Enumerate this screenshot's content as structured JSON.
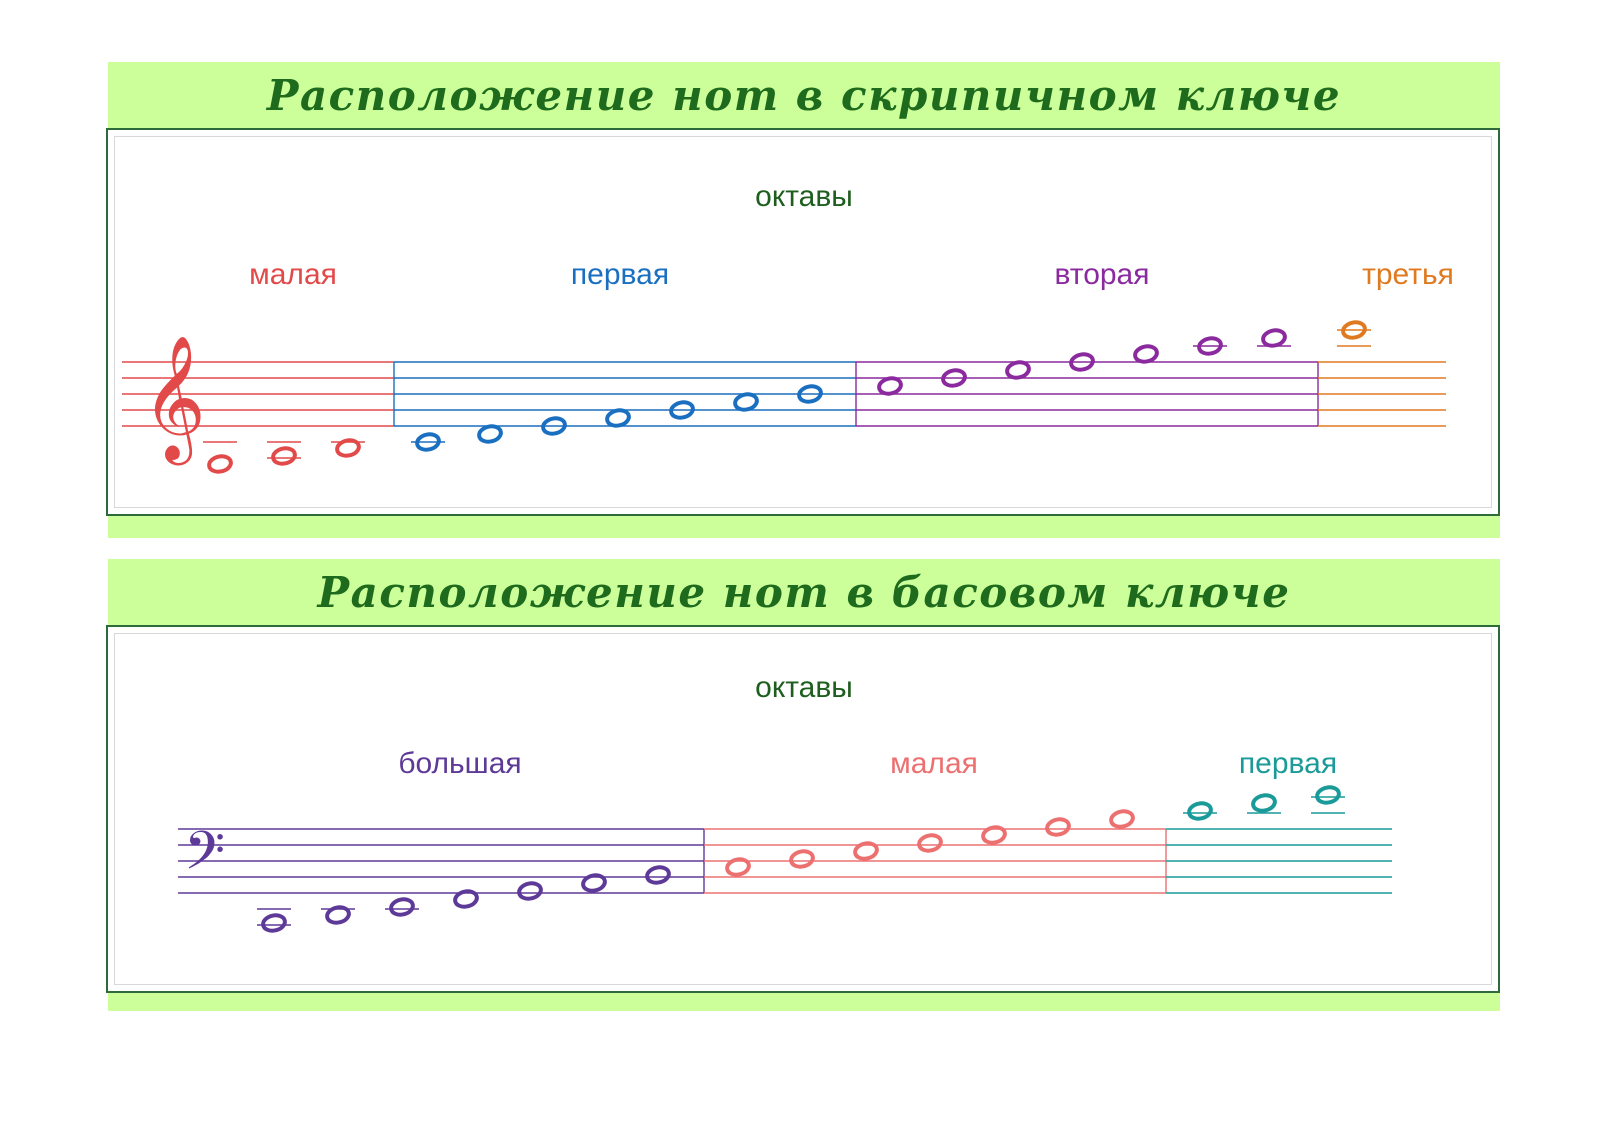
{
  "treble": {
    "title": "Расположение нот в скрипичном ключе",
    "clef": "treble-clef",
    "octaves_title": "октавы",
    "octaves": [
      {
        "name": "малая",
        "color": "#e24a4a"
      },
      {
        "name": "первая",
        "color": "#1a6fc0"
      },
      {
        "name": "вторая",
        "color": "#8a2a9e"
      },
      {
        "name": "третья",
        "color": "#e07a20"
      }
    ]
  },
  "bass": {
    "title": "Расположение нот в басовом ключе",
    "clef": "bass-clef",
    "octaves_title": "октавы",
    "octaves": [
      {
        "name": "большая",
        "color": "#5e3a98"
      },
      {
        "name": "малая",
        "color": "#ec7070"
      },
      {
        "name": "первая",
        "color": "#1a9a98"
      }
    ]
  }
}
